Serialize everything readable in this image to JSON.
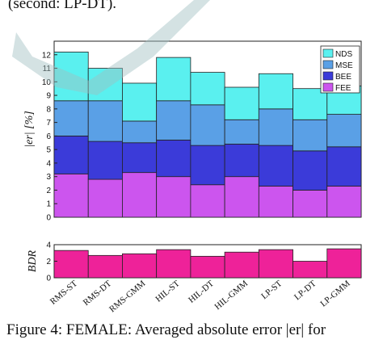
{
  "captions": {
    "top": "(second: LP-DT).",
    "bottom": "Figure 4:  FEMALE: Averaged absolute error |er| for"
  },
  "chart_data": [
    {
      "type": "bar",
      "stacked": true,
      "ylabel": "|er| [%]",
      "ylim": [
        0,
        13
      ],
      "yticks": [
        0,
        1,
        2,
        3,
        4,
        5,
        6,
        7,
        8,
        9,
        10,
        11,
        12
      ],
      "categories": [
        "RMS-ST",
        "RMS-DT",
        "RMS-GMM",
        "HIL-ST",
        "HIL-DT",
        "HIL-GMM",
        "LP-ST",
        "LP-DT",
        "LP-GMM"
      ],
      "series": [
        {
          "name": "FEE",
          "color": "#cc55ee",
          "values": [
            3.2,
            2.8,
            3.3,
            3.0,
            2.4,
            3.0,
            2.3,
            2.0,
            2.3
          ]
        },
        {
          "name": "BEE",
          "color": "#3b3bd9",
          "values": [
            2.8,
            2.8,
            2.2,
            2.7,
            2.9,
            2.4,
            3.0,
            2.9,
            2.9
          ]
        },
        {
          "name": "MSE",
          "color": "#5aa0e6",
          "values": [
            2.6,
            3.0,
            1.6,
            2.9,
            3.0,
            1.8,
            2.7,
            2.3,
            2.4
          ]
        },
        {
          "name": "NDS",
          "color": "#5af0ef",
          "values": [
            3.6,
            2.4,
            2.8,
            3.2,
            2.4,
            2.4,
            2.6,
            2.3,
            2.1
          ]
        }
      ],
      "legend": {
        "position": "top-right",
        "order": [
          "NDS",
          "MSE",
          "BEE",
          "FEE"
        ]
      },
      "grid": false
    },
    {
      "type": "bar",
      "ylabel": "BDR",
      "ylim": [
        0,
        4
      ],
      "yticks": [
        0,
        2,
        4
      ],
      "categories": [
        "RMS-ST",
        "RMS-DT",
        "RMS-GMM",
        "HIL-ST",
        "HIL-DT",
        "HIL-GMM",
        "LP-ST",
        "LP-DT",
        "LP-GMM"
      ],
      "series": [
        {
          "color": "#ee2299",
          "values": [
            3.3,
            2.7,
            2.9,
            3.4,
            2.6,
            3.1,
            3.4,
            2.0,
            3.5
          ]
        }
      ],
      "grid": false
    }
  ]
}
